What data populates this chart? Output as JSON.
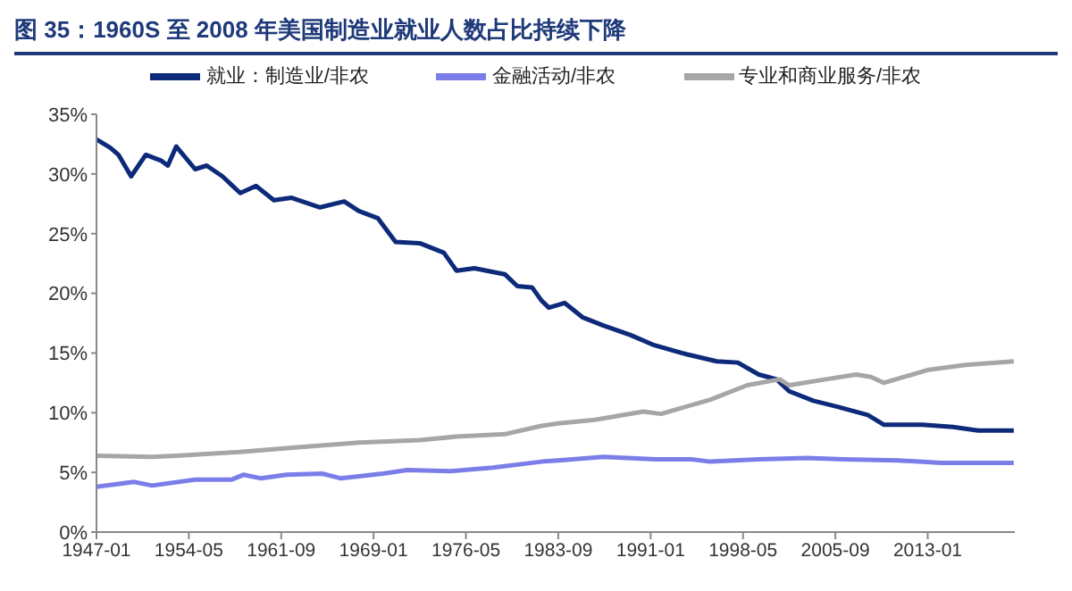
{
  "chart_data": {
    "type": "line",
    "title": "图 35：1960S 至 2008 年美国制造业就业人数占比持续下降",
    "legend": "top",
    "grid": false,
    "marker": "none",
    "line_style": "solid",
    "xlim": [
      "1947-01",
      "2019-12"
    ],
    "xticks": [
      "1947-01",
      "1954-05",
      "1961-09",
      "1969-01",
      "1976-05",
      "1983-09",
      "1991-01",
      "1998-05",
      "2005-09",
      "2013-01"
    ],
    "ylim": [
      0,
      35
    ],
    "yticks": [
      {
        "value": 0,
        "label": "0%"
      },
      {
        "value": 5,
        "label": "5%"
      },
      {
        "value": 10,
        "label": "10%"
      },
      {
        "value": 15,
        "label": "15%"
      },
      {
        "value": 20,
        "label": "20%"
      },
      {
        "value": 25,
        "label": "25%"
      },
      {
        "value": 30,
        "label": "30%"
      },
      {
        "value": 35,
        "label": "35%"
      }
    ],
    "series": [
      {
        "name": "就业：制造业/非农",
        "color": "#0d2a7a",
        "x": [
          "1947-01",
          "1948-02",
          "1948-10",
          "1949-10",
          "1950-12",
          "1952-03",
          "1952-09",
          "1953-05",
          "1954-11",
          "1955-10",
          "1957-01",
          "1958-06",
          "1959-09",
          "1961-02",
          "1962-07",
          "1964-10",
          "1966-09",
          "1967-11",
          "1969-05",
          "1970-10",
          "1972-09",
          "1974-08",
          "1975-08",
          "1977-01",
          "1979-06",
          "1980-06",
          "1981-08",
          "1982-05",
          "1982-12",
          "1984-03",
          "1985-08",
          "1987-04",
          "1989-06",
          "1991-03",
          "1993-11",
          "1996-04",
          "1997-12",
          "1999-08",
          "2001-01",
          "2002-01",
          "2003-12",
          "2005-11",
          "2008-04",
          "2009-07",
          "2012-08",
          "2015-01",
          "2017-01",
          "2019-11"
        ],
        "values": [
          32.9,
          32.2,
          31.6,
          29.8,
          31.6,
          31.1,
          30.7,
          32.3,
          30.4,
          30.7,
          29.8,
          28.4,
          29.0,
          27.8,
          28.0,
          27.2,
          27.7,
          26.9,
          26.3,
          24.3,
          24.2,
          23.4,
          21.9,
          22.1,
          21.6,
          20.6,
          20.5,
          19.4,
          18.8,
          19.2,
          18.0,
          17.3,
          16.5,
          15.7,
          14.9,
          14.3,
          14.2,
          13.2,
          12.8,
          11.8,
          11.0,
          10.5,
          9.8,
          9.0,
          9.0,
          8.8,
          8.5,
          8.5
        ]
      },
      {
        "name": "金融活动/非农",
        "color": "#7b7de8",
        "x": [
          "1947-01",
          "1950-01",
          "1951-06",
          "1954-11",
          "1957-10",
          "1958-09",
          "1960-02",
          "1962-02",
          "1964-12",
          "1966-06",
          "1969-10",
          "1971-09",
          "1975-02",
          "1978-07",
          "1982-05",
          "1983-09",
          "1987-04",
          "1991-06",
          "1994-04",
          "1995-10",
          "1999-08",
          "2003-06",
          "2006-05",
          "2010-09",
          "2014-02",
          "2019-11"
        ],
        "values": [
          3.8,
          4.2,
          3.9,
          4.4,
          4.4,
          4.8,
          4.5,
          4.8,
          4.9,
          4.5,
          4.9,
          5.2,
          5.1,
          5.4,
          5.9,
          6.0,
          6.3,
          6.1,
          6.1,
          5.9,
          6.1,
          6.2,
          6.1,
          6.0,
          5.8,
          5.8
        ]
      },
      {
        "name": "专业和商业服务/非农",
        "color": "#a6a6a6",
        "x": [
          "1947-01",
          "1951-06",
          "1953-05",
          "1958-03",
          "1963-01",
          "1967-11",
          "1972-09",
          "1975-08",
          "1979-06",
          "1982-05",
          "1983-09",
          "1986-08",
          "1990-06",
          "1991-11",
          "1995-10",
          "1998-09",
          "2001-04",
          "2002-01",
          "2004-12",
          "2007-05",
          "2008-07",
          "2009-07",
          "2013-02",
          "2016-01",
          "2019-11"
        ],
        "values": [
          6.4,
          6.3,
          6.4,
          6.7,
          7.1,
          7.5,
          7.7,
          8.0,
          8.2,
          8.9,
          9.1,
          9.4,
          10.1,
          9.9,
          11.1,
          12.3,
          12.8,
          12.3,
          12.8,
          13.2,
          13.0,
          12.5,
          13.6,
          14.0,
          14.3
        ]
      }
    ]
  }
}
